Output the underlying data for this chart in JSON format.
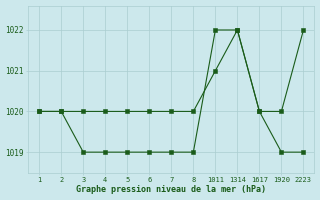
{
  "background_color": "#cce8ec",
  "line_color": "#1a5c1a",
  "grid_color": "#aacdd0",
  "xlabel": "Graphe pression niveau de la mer (hPa)",
  "x_tick_labels": [
    "1",
    "2",
    "3",
    "4",
    "5",
    "6",
    "7",
    "8",
    "1011",
    "1314",
    "1617",
    "1920",
    "2223"
  ],
  "ylim": [
    1018.5,
    1022.6
  ],
  "yticks": [
    1019,
    1020,
    1021,
    1022
  ],
  "series1": {
    "x": [
      0,
      1,
      2,
      3,
      4,
      5,
      6,
      7,
      8,
      9,
      10,
      11,
      12
    ],
    "y": [
      1020.0,
      1020.0,
      1020.0,
      1020.0,
      1020.0,
      1020.0,
      1020.0,
      1020.0,
      1021.0,
      1022.0,
      1020.0,
      1020.0,
      1022.0
    ]
  },
  "series2": {
    "x": [
      0,
      1,
      2,
      3,
      4,
      5,
      6,
      7,
      8,
      9,
      10,
      11,
      12
    ],
    "y": [
      1020.0,
      1020.0,
      1019.0,
      1019.0,
      1019.0,
      1019.0,
      1019.0,
      1019.0,
      1022.0,
      1022.0,
      1020.0,
      1019.0,
      1019.0
    ]
  }
}
